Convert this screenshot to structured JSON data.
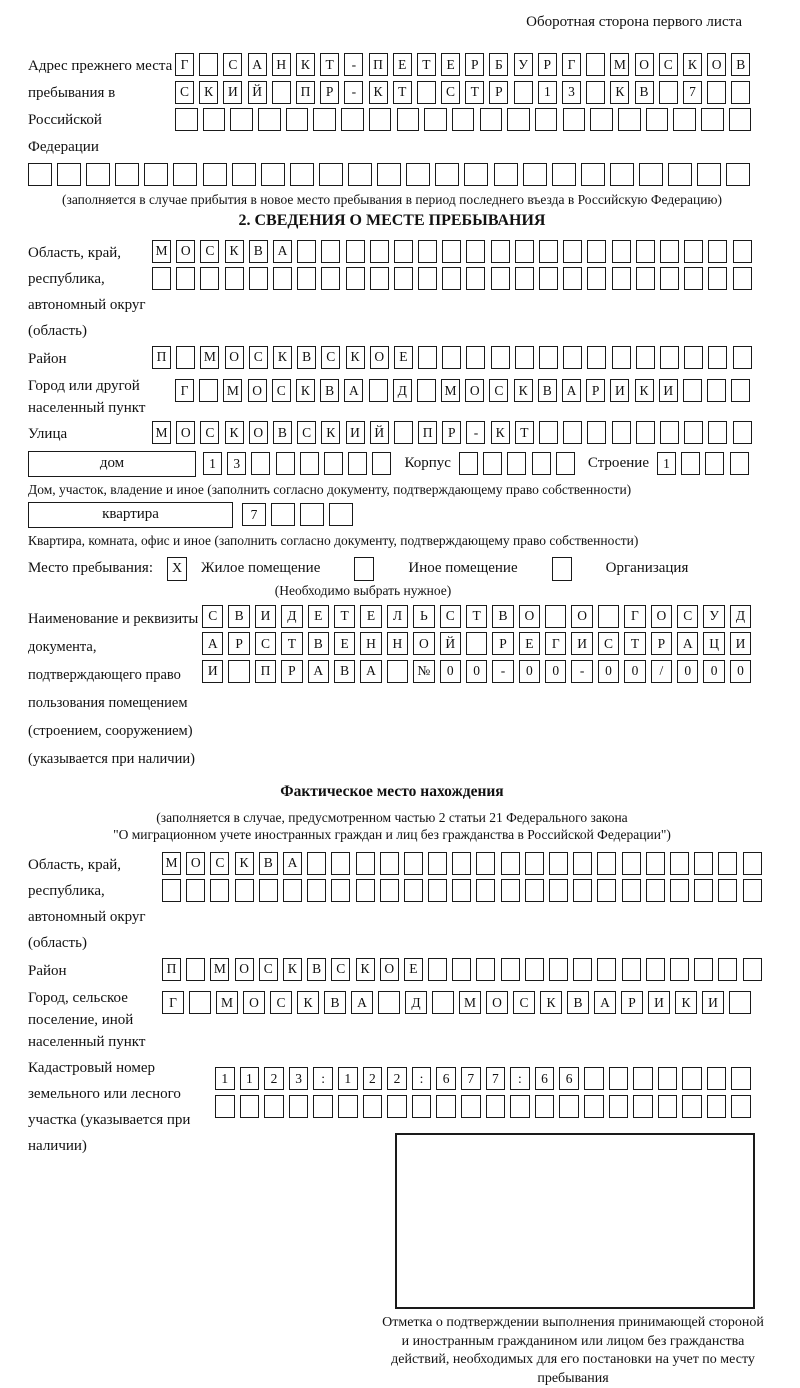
{
  "page": {
    "corner_note": "Оборотная сторона первого листа"
  },
  "prev_address": {
    "label": "Адрес прежнего места пребывания в Российской Федерации",
    "rows": [
      "Г САНКТ-ПЕТЕРБУРГ МОСКОВ",
      "СКИЙ ПР-КТ СТР 13 КВ 7",
      ""
    ],
    "full_row": "",
    "caption": "(заполняется в случае прибытия в новое место пребывания в период последнего въезда в Российскую Федерацию)"
  },
  "section2": {
    "title": "2. СВЕДЕНИЯ О МЕСТЕ ПРЕБЫВАНИЯ",
    "oblast": {
      "label": "Область, край, республика, автономный округ (область)",
      "rows": [
        "МОСКВА",
        ""
      ]
    },
    "raion": {
      "label": "Район",
      "row": "П МОСКВСКОЕ"
    },
    "city": {
      "label": "Город или другой населенный пункт",
      "row": "Г МОСКВА Д МОСКВАРИКИ"
    },
    "street": {
      "label": "Улица",
      "row": "МОСКОВСКИЙ ПР-КТ"
    },
    "house": {
      "label": "дом",
      "cells": "13",
      "korpus_label": "Корпус",
      "korpus_cells": "",
      "stroenie_label": "Строение",
      "stroenie_cells": "1",
      "caption": "Дом, участок, владение и иное (заполнить согласно документу, подтверждающему право собственности)"
    },
    "apartment": {
      "label": "квартира",
      "cells": "7",
      "caption": "Квартира, комната, офис и иное (заполнить согласно документу, подтверждающему право собственности)"
    },
    "stay": {
      "label": "Место пребывания:",
      "options": [
        {
          "label": "Жилое помещение",
          "mark": "X"
        },
        {
          "label": "Иное помещение",
          "mark": ""
        },
        {
          "label": "Организация",
          "mark": ""
        }
      ],
      "note": "(Необходимо выбрать нужное)"
    },
    "document": {
      "label": "Наименование и реквизиты документа, подтверждающего право пользования помещением (строением, сооружением) (указывается при наличии)",
      "rows": [
        "СВИДЕТЕЛЬСТВО О ГОСУД",
        "АРСТВЕННОЙ РЕГИСТРАЦИ",
        "И ПРАВА №00-00-00/000"
      ]
    }
  },
  "fact": {
    "title": "Фактическое место нахождения",
    "note_line1": "(заполняется в случае, предусмотренном частью 2 статьи 21 Федерального закона",
    "note_line2": "\"О миграционном учете иностранных граждан и лиц без гражданства в Российской Федерации\")",
    "oblast": {
      "label": "Область, край, республика, автономный округ (область)",
      "rows": [
        "МОСКВА",
        ""
      ]
    },
    "raion": {
      "label": "Район",
      "row": "П МОСКВСКОЕ"
    },
    "city": {
      "label": "Город, сельское поселение, иной населенный пункт",
      "row": "Г МОСКВА Д МОСКВАРИКИ"
    },
    "cadastre": {
      "label": "Кадастровый номер земельного или лесного участка (указывается при наличии)",
      "rows": [
        "1123:122:677:66",
        ""
      ]
    }
  },
  "stamp": {
    "caption": "Отметка о подтверждении выполнения принимающей стороной и иностранным гражданином или лицом без гражданства действий, необходимых для его постановки на учет по месту пребывания"
  }
}
